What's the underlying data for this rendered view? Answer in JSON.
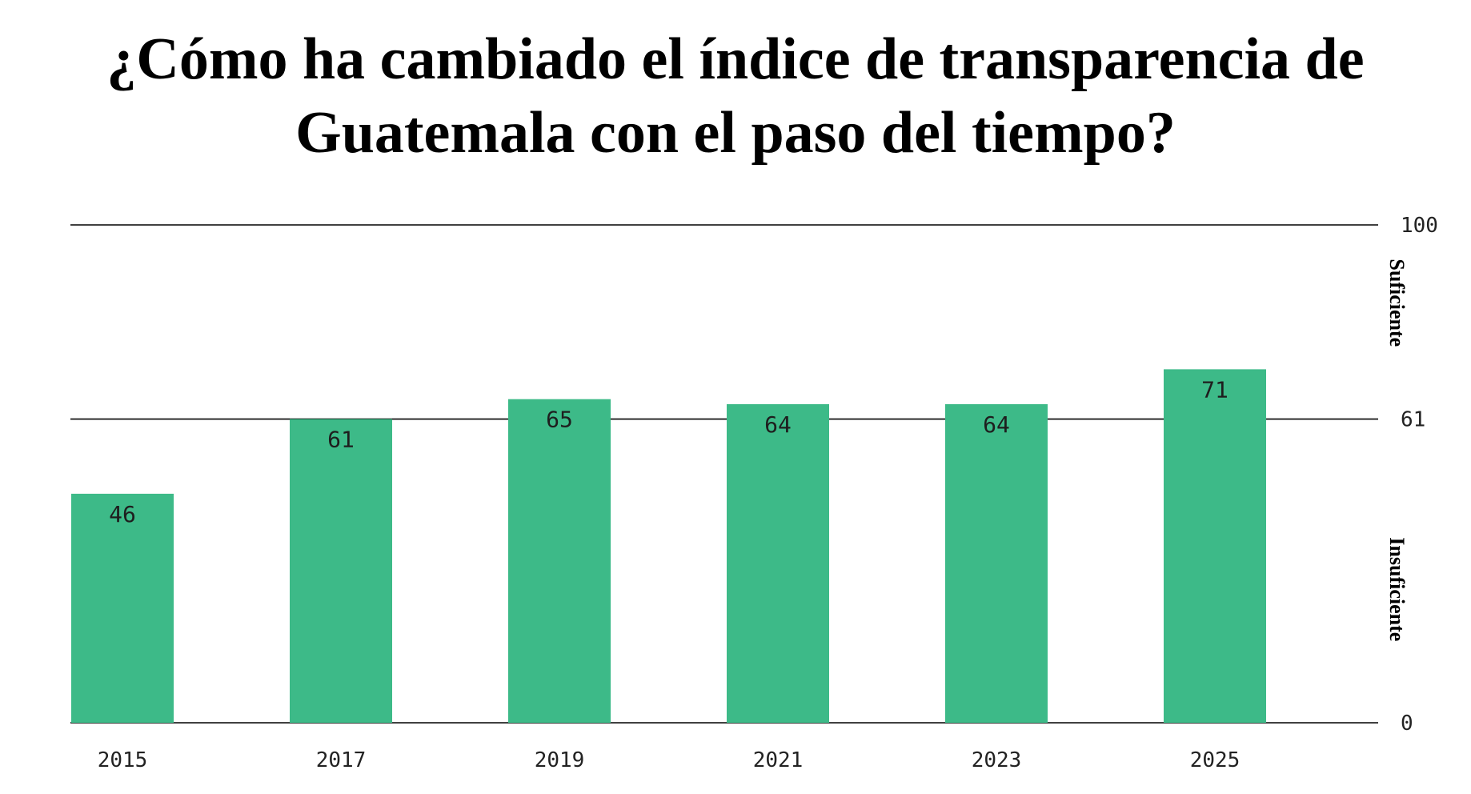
{
  "chart_data": {
    "type": "bar",
    "title_lines": [
      "¿Cómo ha cambiado el índice de transparencia de",
      "Guatemala con el paso del tiempo?"
    ],
    "categories": [
      "2015",
      "2017",
      "2019",
      "2021",
      "2023",
      "2025"
    ],
    "values": [
      46,
      61,
      65,
      64,
      64,
      71
    ],
    "value_labels": [
      "46",
      "61",
      "65",
      "64",
      "64",
      "71"
    ],
    "ylim": [
      0,
      100
    ],
    "y_ticks": [
      {
        "value": 0,
        "label": "0"
      },
      {
        "value": 61,
        "label": "61"
      },
      {
        "value": 100,
        "label": "100"
      }
    ],
    "y_axis_side": "right",
    "bands": [
      {
        "label": "Suficiente",
        "from": 61,
        "to": 100
      },
      {
        "label": "Insuficiente",
        "from": 0,
        "to": 61
      }
    ],
    "xlabel": "",
    "ylabel": "",
    "grid": false,
    "colors": {
      "bar": "#3dba88",
      "reference_line": "#000000",
      "text": "#222222"
    }
  }
}
